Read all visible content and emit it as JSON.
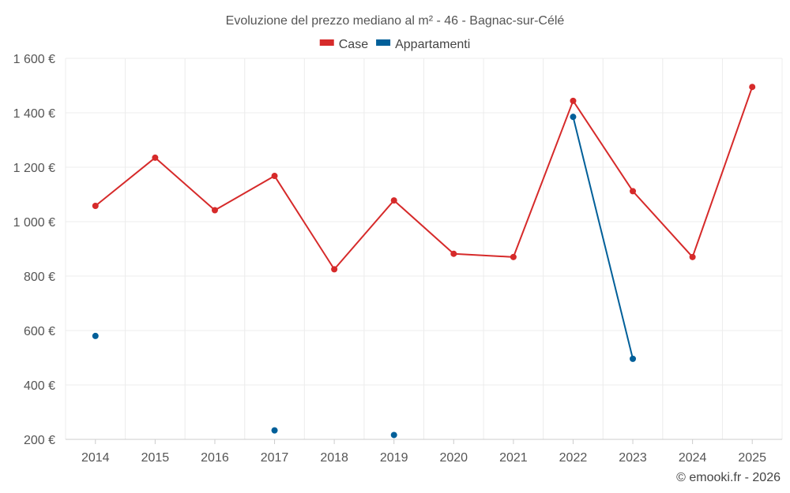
{
  "chart_data": {
    "type": "line",
    "title": "Evoluzione del prezzo mediano al m² - 46 - Bagnac-sur-Célé",
    "categories": [
      "2014",
      "2015",
      "2016",
      "2017",
      "2018",
      "2019",
      "2020",
      "2021",
      "2022",
      "2023",
      "2024",
      "2025"
    ],
    "ylim": [
      200,
      1600
    ],
    "yticks": [
      200,
      400,
      600,
      800,
      1000,
      1200,
      1400,
      1600
    ],
    "ytick_labels": [
      "200 €",
      "400 €",
      "600 €",
      "800 €",
      "1 000 €",
      "1 200 €",
      "1 400 €",
      "1 600 €"
    ],
    "series": [
      {
        "name": "Case",
        "color": "#d62a2a",
        "values": [
          1058,
          1235,
          1042,
          1168,
          825,
          1078,
          882,
          870,
          1444,
          1112,
          870,
          1495
        ]
      },
      {
        "name": "Appartamenti",
        "color": "#005f99",
        "values": [
          580,
          null,
          null,
          233,
          null,
          216,
          null,
          null,
          1385,
          496,
          null,
          null
        ]
      }
    ],
    "legend_position": "top-center",
    "credit": "© emooki.fr - 2026"
  }
}
